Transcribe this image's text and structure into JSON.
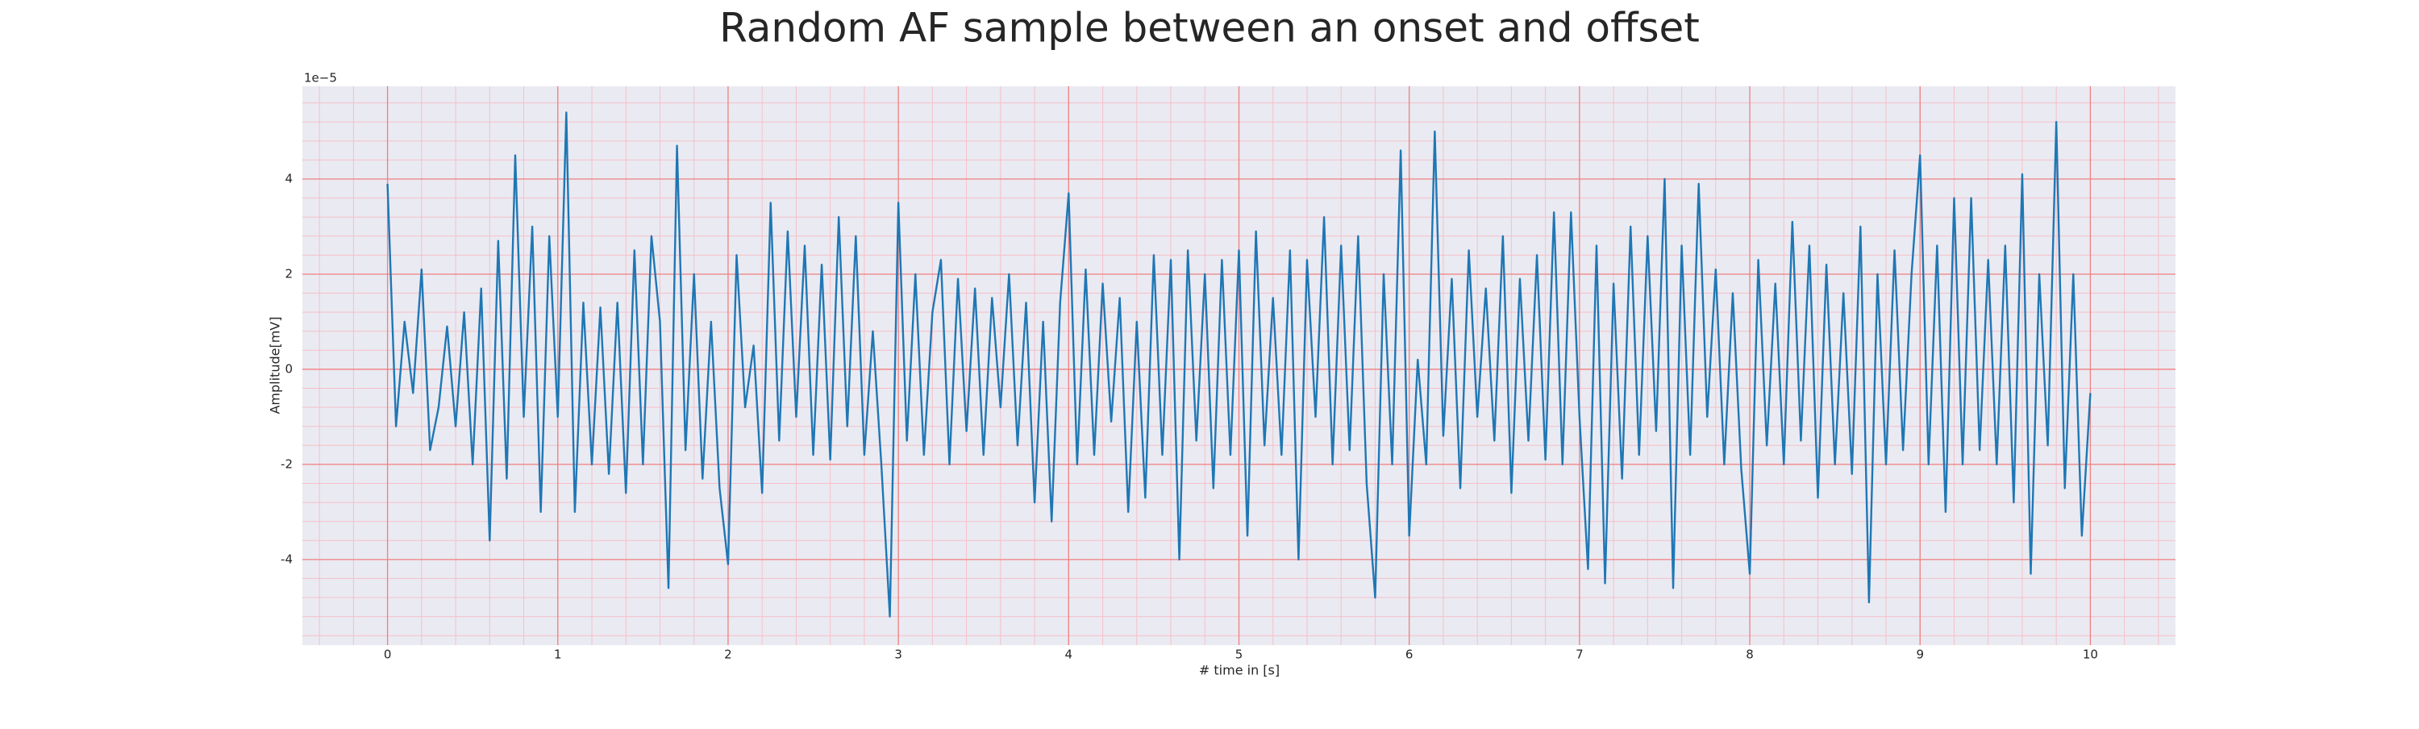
{
  "chart_data": {
    "type": "line",
    "title": "Random AF sample between an onset and offset",
    "x_label": "# time in [s]",
    "y_label": "Amplitude[mV]",
    "y_offset_text": "1e−5",
    "xlim": [
      -0.5,
      10.5
    ],
    "ylim": [
      -5.8,
      5.95
    ],
    "xticks": [
      0,
      1,
      2,
      3,
      4,
      5,
      6,
      7,
      8,
      9,
      10
    ],
    "yticks": [
      -4,
      -2,
      0,
      2,
      4
    ],
    "grid": true,
    "minor_grid": true,
    "background": "#eaeaf2",
    "grid_color": "#f08080",
    "minor_grid_color": "#f6c0c8",
    "series": [
      {
        "color": "#1f77b4",
        "x": [
          0,
          0.05,
          0.1,
          0.15,
          0.2,
          0.25,
          0.3,
          0.35,
          0.4,
          0.45,
          0.5,
          0.55,
          0.6,
          0.65,
          0.7,
          0.75,
          0.8,
          0.85,
          0.9,
          0.95,
          1,
          1.05,
          1.1,
          1.15,
          1.2,
          1.25,
          1.3,
          1.35,
          1.4,
          1.45,
          1.5,
          1.55,
          1.6,
          1.65,
          1.7,
          1.75,
          1.8,
          1.85,
          1.9,
          1.95,
          2,
          2.05,
          2.1,
          2.15,
          2.2,
          2.25,
          2.3,
          2.35,
          2.4,
          2.45,
          2.5,
          2.55,
          2.6,
          2.65,
          2.7,
          2.75,
          2.8,
          2.85,
          2.9,
          2.95,
          3,
          3.05,
          3.1,
          3.15,
          3.2,
          3.25,
          3.3,
          3.35,
          3.4,
          3.45,
          3.5,
          3.55,
          3.6,
          3.65,
          3.7,
          3.75,
          3.8,
          3.85,
          3.9,
          3.95,
          4,
          4.05,
          4.1,
          4.15,
          4.2,
          4.25,
          4.3,
          4.35,
          4.4,
          4.45,
          4.5,
          4.55,
          4.6,
          4.65,
          4.7,
          4.75,
          4.8,
          4.85,
          4.9,
          4.95,
          5,
          5.05,
          5.1,
          5.15,
          5.2,
          5.25,
          5.3,
          5.35,
          5.4,
          5.45,
          5.5,
          5.55,
          5.6,
          5.65,
          5.7,
          5.75,
          5.8,
          5.85,
          5.9,
          5.95,
          6,
          6.05,
          6.1,
          6.15,
          6.2,
          6.25,
          6.3,
          6.35,
          6.4,
          6.45,
          6.5,
          6.55,
          6.6,
          6.65,
          6.7,
          6.75,
          6.8,
          6.85,
          6.9,
          6.95,
          7,
          7.05,
          7.1,
          7.15,
          7.2,
          7.25,
          7.3,
          7.35,
          7.4,
          7.45,
          7.5,
          7.55,
          7.6,
          7.65,
          7.7,
          7.75,
          7.8,
          7.85,
          7.9,
          7.95,
          8,
          8.05,
          8.1,
          8.15,
          8.2,
          8.25,
          8.3,
          8.35,
          8.4,
          8.45,
          8.5,
          8.55,
          8.6,
          8.65,
          8.7,
          8.75,
          8.8,
          8.85,
          8.9,
          8.95,
          9,
          9.05,
          9.1,
          9.15,
          9.2,
          9.25,
          9.3,
          9.35,
          9.4,
          9.45,
          9.5,
          9.55,
          9.6,
          9.65,
          9.7,
          9.75,
          9.8,
          9.85,
          9.9,
          9.95,
          10
        ],
        "values": [
          3.9,
          -1.2,
          1.0,
          -0.5,
          2.1,
          -1.7,
          -0.8,
          0.9,
          -1.2,
          1.2,
          -2.0,
          1.7,
          -3.6,
          2.7,
          -2.3,
          4.5,
          -1.0,
          3.0,
          -3.0,
          2.8,
          -1.0,
          5.4,
          -3.0,
          1.4,
          -2.0,
          1.3,
          -2.2,
          1.4,
          -2.6,
          2.5,
          -2.0,
          2.8,
          1.0,
          -4.6,
          4.7,
          -1.7,
          2.0,
          -2.3,
          1.0,
          -2.5,
          -4.1,
          2.4,
          -0.8,
          0.5,
          -2.6,
          3.5,
          -1.5,
          2.9,
          -1.0,
          2.6,
          -1.8,
          2.2,
          -1.9,
          3.2,
          -1.2,
          2.8,
          -1.8,
          0.8,
          -2.0,
          -5.2,
          3.5,
          -1.5,
          2.0,
          -1.8,
          1.2,
          2.3,
          -2.0,
          1.9,
          -1.3,
          1.7,
          -1.8,
          1.5,
          -0.8,
          2.0,
          -1.6,
          1.4,
          -2.8,
          1.0,
          -3.2,
          1.4,
          3.7,
          -2.0,
          2.1,
          -1.8,
          1.8,
          -1.1,
          1.5,
          -3.0,
          1.0,
          -2.7,
          2.4,
          -1.8,
          2.3,
          -4.0,
          2.5,
          -1.5,
          2.0,
          -2.5,
          2.3,
          -1.8,
          2.5,
          -3.5,
          2.9,
          -1.6,
          1.5,
          -1.8,
          2.5,
          -4.0,
          2.3,
          -1.0,
          3.2,
          -2.0,
          2.6,
          -1.7,
          2.8,
          -2.4,
          -4.8,
          2.0,
          -2.0,
          4.6,
          -3.5,
          0.2,
          -2.0,
          5.0,
          -1.4,
          1.9,
          -2.5,
          2.5,
          -1.0,
          1.7,
          -1.5,
          2.8,
          -2.6,
          1.9,
          -1.5,
          2.4,
          -1.9,
          3.3,
          -2.0,
          3.3,
          -1.0,
          -4.2,
          2.6,
          -4.5,
          1.8,
          -2.3,
          3.0,
          -1.8,
          2.8,
          -1.3,
          4.0,
          -4.6,
          2.6,
          -1.8,
          3.9,
          -1.0,
          2.1,
          -2.0,
          1.6,
          -2.1,
          -4.3,
          2.3,
          -1.6,
          1.8,
          -2.0,
          3.1,
          -1.5,
          2.6,
          -2.7,
          2.2,
          -2.0,
          1.6,
          -2.2,
          3.0,
          -4.9,
          2.0,
          -2.0,
          2.5,
          -1.7,
          2.0,
          4.5,
          -2.0,
          2.6,
          -3.0,
          3.6,
          -2.0,
          3.6,
          -1.7,
          2.3,
          -2.0,
          2.6,
          -2.8,
          4.1,
          -4.3,
          2.0,
          -1.6,
          5.2,
          -2.5,
          2.0,
          -3.5,
          -0.5
        ]
      }
    ]
  }
}
